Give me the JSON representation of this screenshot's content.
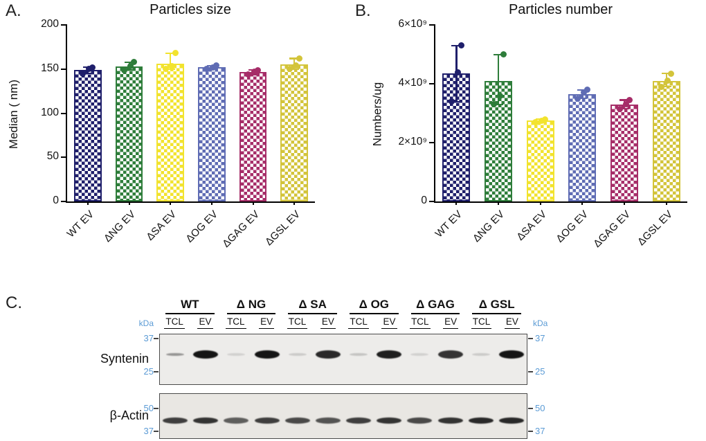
{
  "panels": {
    "a_label": "A.",
    "b_label": "B.",
    "c_label": "C."
  },
  "chart_data": [
    {
      "id": "particles-size",
      "type": "bar",
      "title": "Particles size",
      "ylabel": "Median ( nm)",
      "ylim": [
        0,
        200
      ],
      "yticks": [
        {
          "value": 0,
          "label": "0"
        },
        {
          "value": 50,
          "label": "50"
        },
        {
          "value": 100,
          "label": "100"
        },
        {
          "value": 150,
          "label": "150"
        },
        {
          "value": 200,
          "label": "200"
        }
      ],
      "categories": [
        "WT EV",
        "ΔNG EV",
        "ΔSA EV",
        "ΔOG EV",
        "ΔGAG EV",
        "ΔGSL EV"
      ],
      "values": [
        149,
        153,
        156,
        152,
        147,
        155
      ],
      "points": [
        [
          145,
          150,
          152
        ],
        [
          149,
          153,
          158
        ],
        [
          150,
          153,
          168
        ],
        [
          150,
          152,
          154
        ],
        [
          144,
          147,
          149
        ],
        [
          150,
          154,
          162
        ]
      ],
      "bar_colors": [
        "#1f1f6b",
        "#2e7d3a",
        "#f2e32e",
        "#5f6cb4",
        "#a62d68",
        "#d3c43a"
      ],
      "grid": false,
      "legend": false
    },
    {
      "id": "particles-number",
      "type": "bar",
      "title": "Particles number",
      "ylabel": "Numbers/ug",
      "ylim": [
        0,
        6000000000
      ],
      "yticks": [
        {
          "value": 0,
          "label": "0"
        },
        {
          "value": 2000000000,
          "label": "2×10⁹"
        },
        {
          "value": 4000000000,
          "label": "4×10⁹"
        },
        {
          "value": 6000000000,
          "label": "6×10⁹"
        }
      ],
      "categories": [
        "WT EV",
        "ΔNG EV",
        "ΔSA EV",
        "ΔOG EV",
        "ΔGAG EV",
        "ΔGSL EV"
      ],
      "values": [
        4350000000,
        4100000000,
        2750000000,
        3650000000,
        3300000000,
        4100000000
      ],
      "points": [
        [
          3400000000,
          4400000000,
          5300000000
        ],
        [
          3300000000,
          3600000000,
          5000000000
        ],
        [
          2700000000,
          2750000000,
          2800000000
        ],
        [
          3500000000,
          3700000000,
          3800000000
        ],
        [
          3150000000,
          3300000000,
          3450000000
        ],
        [
          3900000000,
          4100000000,
          4350000000
        ]
      ],
      "bar_colors": [
        "#1f1f6b",
        "#2e7d3a",
        "#f2e32e",
        "#5f6cb4",
        "#a62d68",
        "#d3c43a"
      ],
      "grid": false,
      "legend": false
    }
  ],
  "western_blot": {
    "groups": [
      "WT",
      "Δ NG",
      "Δ SA",
      "Δ OG",
      "Δ GAG",
      "Δ GSL"
    ],
    "lanes": [
      "TCL",
      "EV"
    ],
    "kda_unit": "kDa",
    "marker_color": "#5b9bd5",
    "blots": [
      {
        "name": "Syntenin",
        "markers": [
          {
            "label": "37",
            "pos": 0.1
          },
          {
            "label": "25",
            "pos": 0.76
          }
        ],
        "band_y": 0.4,
        "bands": [
          {
            "group": "WT",
            "lane": "TCL",
            "intensity": 0.4
          },
          {
            "group": "WT",
            "lane": "EV",
            "intensity": 1.0
          },
          {
            "group": "Δ NG",
            "lane": "TCL",
            "intensity": 0.12
          },
          {
            "group": "Δ NG",
            "lane": "EV",
            "intensity": 1.0
          },
          {
            "group": "Δ SA",
            "lane": "TCL",
            "intensity": 0.15
          },
          {
            "group": "Δ SA",
            "lane": "EV",
            "intensity": 0.9
          },
          {
            "group": "Δ OG",
            "lane": "TCL",
            "intensity": 0.18
          },
          {
            "group": "Δ OG",
            "lane": "EV",
            "intensity": 0.95
          },
          {
            "group": "Δ GAG",
            "lane": "TCL",
            "intensity": 0.12
          },
          {
            "group": "Δ GAG",
            "lane": "EV",
            "intensity": 0.85
          },
          {
            "group": "Δ GSL",
            "lane": "TCL",
            "intensity": 0.15
          },
          {
            "group": "Δ GSL",
            "lane": "EV",
            "intensity": 1.0
          }
        ]
      },
      {
        "name": "β-Actin",
        "markers": [
          {
            "label": "50",
            "pos": 0.34
          },
          {
            "label": "37",
            "pos": 0.86
          }
        ],
        "band_y": 0.6,
        "bands": [
          {
            "group": "WT",
            "lane": "TCL",
            "intensity": 0.8
          },
          {
            "group": "WT",
            "lane": "EV",
            "intensity": 0.85
          },
          {
            "group": "Δ NG",
            "lane": "TCL",
            "intensity": 0.65
          },
          {
            "group": "Δ NG",
            "lane": "EV",
            "intensity": 0.8
          },
          {
            "group": "Δ SA",
            "lane": "TCL",
            "intensity": 0.75
          },
          {
            "group": "Δ SA",
            "lane": "EV",
            "intensity": 0.7
          },
          {
            "group": "Δ OG",
            "lane": "TCL",
            "intensity": 0.8
          },
          {
            "group": "Δ OG",
            "lane": "EV",
            "intensity": 0.85
          },
          {
            "group": "Δ GAG",
            "lane": "TCL",
            "intensity": 0.75
          },
          {
            "group": "Δ GAG",
            "lane": "EV",
            "intensity": 0.85
          },
          {
            "group": "Δ GSL",
            "lane": "TCL",
            "intensity": 0.9
          },
          {
            "group": "Δ GSL",
            "lane": "EV",
            "intensity": 0.9
          }
        ]
      }
    ]
  }
}
